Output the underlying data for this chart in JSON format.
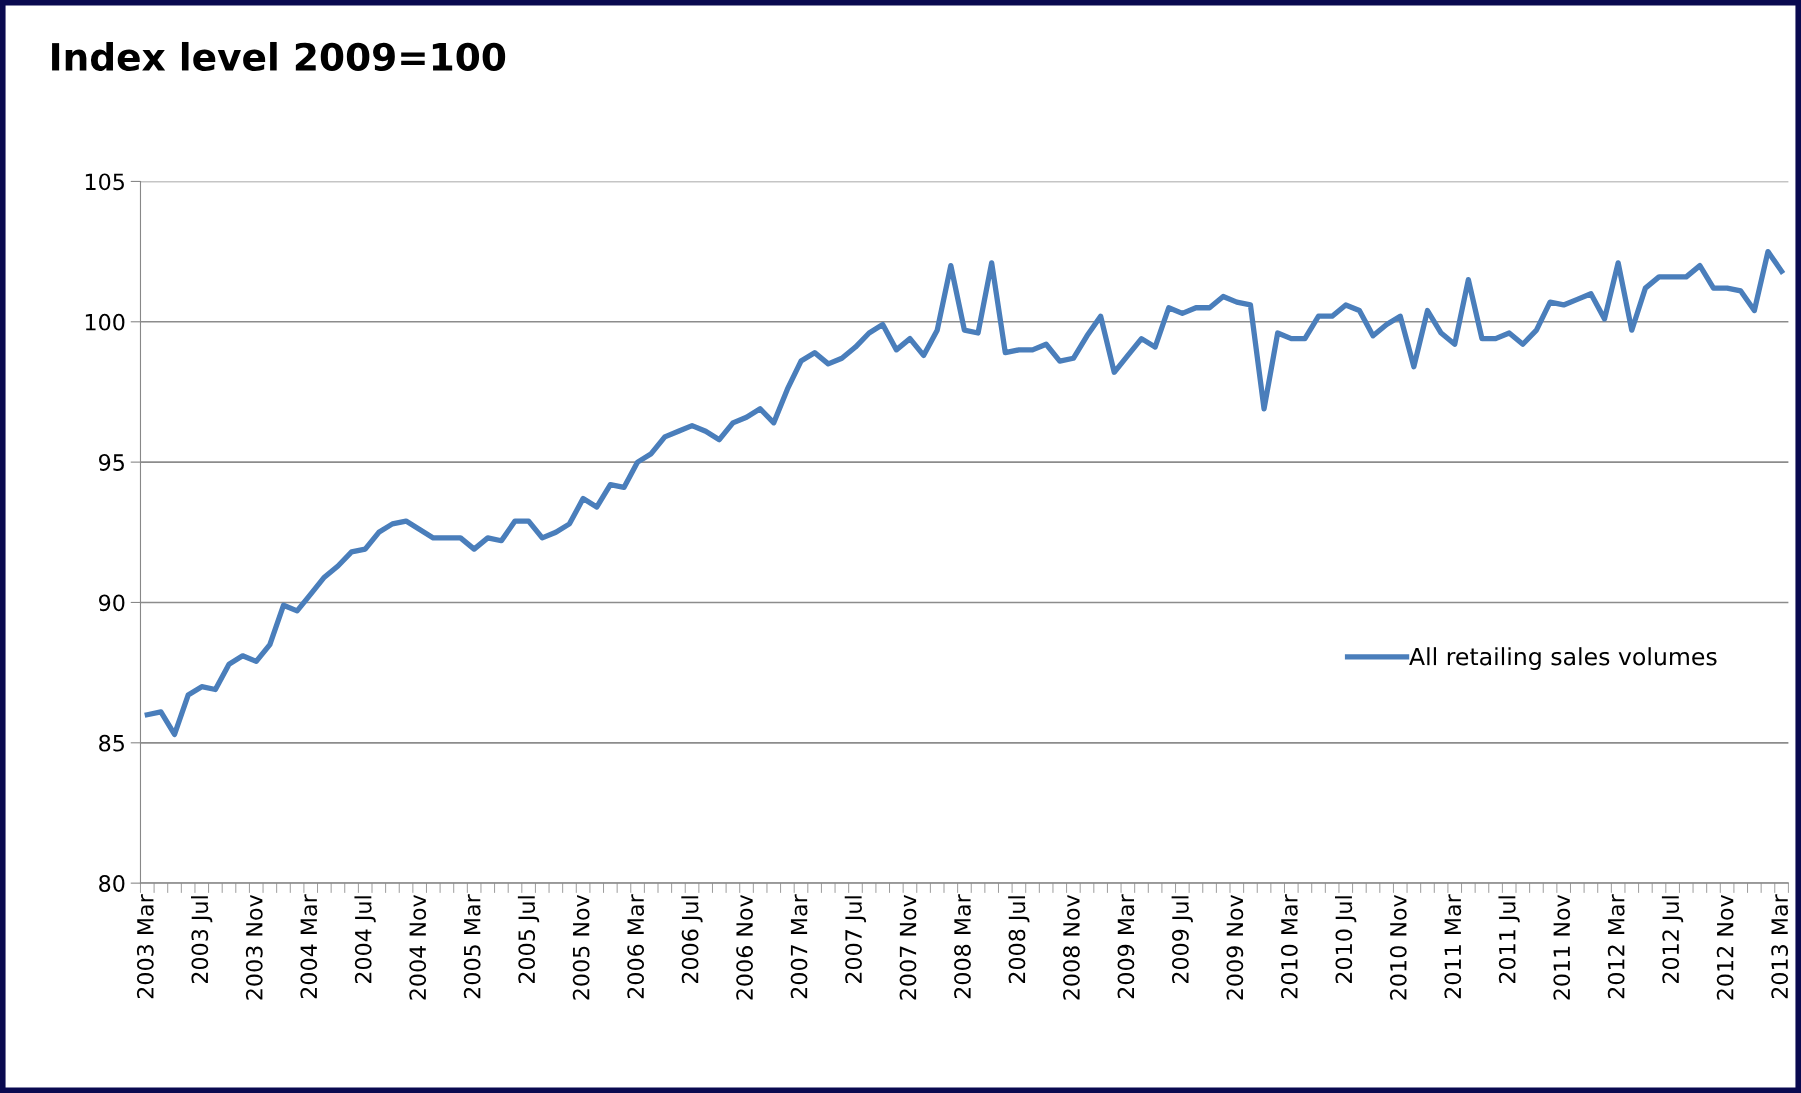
{
  "chart_data": {
    "type": "line",
    "title": "Index level 2009=100",
    "categories": [
      "2003 Mar",
      null,
      null,
      null,
      "2003 Jul",
      null,
      null,
      null,
      "2003 Nov",
      null,
      null,
      null,
      "2004 Mar",
      null,
      null,
      null,
      "2004 Jul",
      null,
      null,
      null,
      "2004 Nov",
      null,
      null,
      null,
      "2005 Mar",
      null,
      null,
      null,
      "2005 Jul",
      null,
      null,
      null,
      "2005 Nov",
      null,
      null,
      null,
      "2006 Mar",
      null,
      null,
      null,
      "2006 Jul",
      null,
      null,
      null,
      "2006 Nov",
      null,
      null,
      null,
      "2007 Mar",
      null,
      null,
      null,
      "2007 Jul",
      null,
      null,
      null,
      "2007 Nov",
      null,
      null,
      null,
      "2008 Mar",
      null,
      null,
      null,
      "2008 Jul",
      null,
      null,
      null,
      "2008 Nov",
      null,
      null,
      null,
      "2009 Mar",
      null,
      null,
      null,
      "2009 Jul",
      null,
      null,
      null,
      "2009 Nov",
      null,
      null,
      null,
      "2010 Mar",
      null,
      null,
      null,
      "2010 Jul",
      null,
      null,
      null,
      "2010 Nov",
      null,
      null,
      null,
      "2011 Mar",
      null,
      null,
      null,
      "2011 Jul",
      null,
      null,
      null,
      "2011 Nov",
      null,
      null,
      null,
      "2012 Mar",
      null,
      null,
      null,
      "2012 Jul",
      null,
      null,
      null,
      "2012 Nov",
      null,
      null,
      null,
      "2013 Mar"
    ],
    "series": [
      {
        "name": "All retailing sales volumes",
        "color": "#4a7ebb",
        "values": [
          86.0,
          86.1,
          85.3,
          86.7,
          87.0,
          86.9,
          87.8,
          88.1,
          87.9,
          88.5,
          89.9,
          89.7,
          90.3,
          90.9,
          91.3,
          91.8,
          91.9,
          92.5,
          92.8,
          92.9,
          92.6,
          92.3,
          92.3,
          92.3,
          91.9,
          92.3,
          92.2,
          92.9,
          92.9,
          92.3,
          92.5,
          92.8,
          93.7,
          93.4,
          94.2,
          94.1,
          95.0,
          95.3,
          95.9,
          96.1,
          96.3,
          96.1,
          95.8,
          96.4,
          96.6,
          96.9,
          96.4,
          97.6,
          98.6,
          98.9,
          98.5,
          98.7,
          99.1,
          99.6,
          99.9,
          99.0,
          99.4,
          98.8,
          99.7,
          102.0,
          99.7,
          99.6,
          102.1,
          98.9,
          99.0,
          99.0,
          99.2,
          98.6,
          98.7,
          99.5,
          100.2,
          98.2,
          98.8,
          99.4,
          99.1,
          100.5,
          100.3,
          100.5,
          100.5,
          100.9,
          100.7,
          100.6,
          96.9,
          99.6,
          99.4,
          99.4,
          100.2,
          100.2,
          100.6,
          100.4,
          99.5,
          99.9,
          100.2,
          98.4,
          100.4,
          99.6,
          99.2,
          101.5,
          99.4,
          99.4,
          99.6,
          99.2,
          99.7,
          100.7,
          100.6,
          100.8,
          101.0,
          100.1,
          102.1,
          99.7,
          101.2,
          101.6,
          101.6,
          101.6,
          102.0,
          101.2,
          101.2,
          101.1,
          100.4,
          102.5,
          101.8
        ]
      }
    ],
    "ylim": [
      80,
      105
    ],
    "yticks": [
      80,
      85,
      90,
      95,
      100,
      105
    ],
    "grid": "y",
    "legend": "right",
    "marker": "none",
    "line_style": "solid"
  }
}
